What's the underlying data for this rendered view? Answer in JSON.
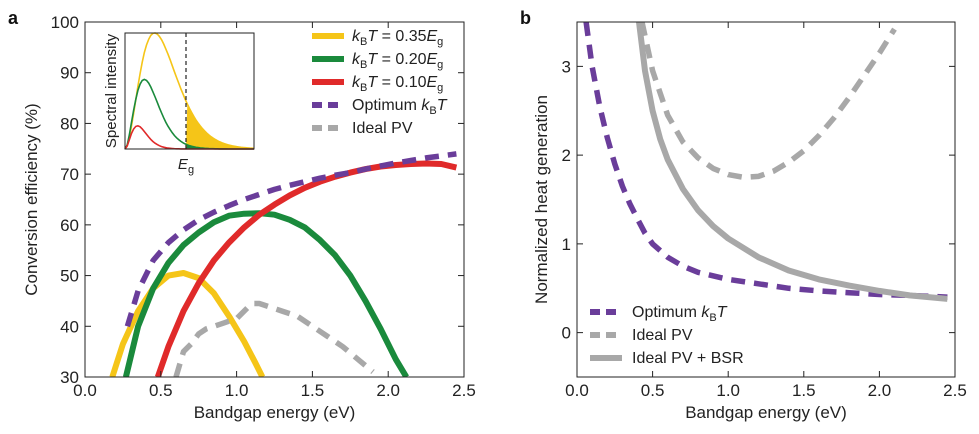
{
  "chart_data": [
    {
      "panel_label": "a",
      "type": "line",
      "xlabel": "Bandgap energy (eV)",
      "ylabel": "Conversion efficiency (%)",
      "xlim": [
        0.0,
        2.5
      ],
      "ylim": [
        30,
        100
      ],
      "xticks": [
        "0.0",
        "0.5",
        "1.0",
        "1.5",
        "2.0",
        "2.5"
      ],
      "yticks": [
        "30",
        "40",
        "50",
        "60",
        "70",
        "80",
        "90",
        "100"
      ],
      "grid": false,
      "legend_position": "top-right",
      "series": [
        {
          "name": "kBT = 0.35Eg",
          "legend": {
            "pre": "k",
            "sub1": "B",
            "mid": "T = 0.35",
            "var": "E",
            "sub2": "g"
          },
          "color": "#f5c518",
          "style": "solid",
          "x": [
            0.18,
            0.25,
            0.35,
            0.45,
            0.55,
            0.65,
            0.75,
            0.85,
            0.95,
            1.05,
            1.12,
            1.17
          ],
          "y": [
            30,
            36.5,
            43,
            47.5,
            50,
            50.5,
            49.5,
            46.5,
            42,
            37,
            33,
            30
          ]
        },
        {
          "name": "kBT = 0.20Eg",
          "legend": {
            "pre": "k",
            "sub1": "B",
            "mid": "T = 0.20",
            "var": "E",
            "sub2": "g"
          },
          "color": "#1a8a3c",
          "style": "solid",
          "x": [
            0.27,
            0.35,
            0.45,
            0.55,
            0.65,
            0.75,
            0.85,
            0.95,
            1.05,
            1.15,
            1.25,
            1.35,
            1.45,
            1.55,
            1.65,
            1.75,
            1.85,
            1.95,
            2.05,
            2.12
          ],
          "y": [
            30,
            40,
            47.5,
            52.5,
            56,
            58.5,
            60.5,
            61.8,
            62.2,
            62.3,
            62,
            61,
            59.5,
            57,
            54,
            50,
            45,
            39.5,
            33.5,
            30
          ]
        },
        {
          "name": "kBT = 0.10Eg",
          "legend": {
            "pre": "k",
            "sub1": "B",
            "mid": "T = 0.10",
            "var": "E",
            "sub2": "g"
          },
          "color": "#e02a2a",
          "style": "solid",
          "x": [
            0.48,
            0.55,
            0.65,
            0.75,
            0.85,
            0.95,
            1.05,
            1.15,
            1.25,
            1.35,
            1.45,
            1.55,
            1.65,
            1.75,
            1.85,
            1.95,
            2.05,
            2.15,
            2.25,
            2.35,
            2.45
          ],
          "y": [
            30,
            36,
            43,
            48.5,
            53,
            56.5,
            59.5,
            62,
            64,
            65.8,
            67.3,
            68.5,
            69.5,
            70.3,
            71,
            71.5,
            71.8,
            72,
            72.1,
            72,
            71.3
          ]
        },
        {
          "name": "Optimum kBT",
          "legend": {
            "pre": "Optimum ",
            "var": "k",
            "sub1": "B",
            "mid": "",
            "var2": "T"
          },
          "color": "#6a3d9a",
          "style": "dashed",
          "x": [
            0.28,
            0.35,
            0.45,
            0.55,
            0.65,
            0.75,
            0.85,
            0.95,
            1.05,
            1.15,
            1.25,
            1.35,
            1.45,
            1.55,
            1.65,
            1.75,
            1.85,
            1.95,
            2.05,
            2.15,
            2.25,
            2.35,
            2.45
          ],
          "y": [
            40,
            47,
            53,
            56.5,
            59,
            61,
            62.5,
            63.8,
            65,
            66,
            67,
            67.8,
            68.5,
            69.2,
            69.8,
            70.3,
            71,
            71.6,
            72.2,
            72.7,
            73.2,
            73.6,
            74
          ]
        },
        {
          "name": "Ideal PV",
          "legend": {
            "pre": "Ideal PV"
          },
          "color": "#a8a8a8",
          "style": "dashed",
          "x": [
            0.6,
            0.65,
            0.7,
            0.75,
            0.8,
            0.85,
            0.9,
            0.95,
            1.0,
            1.05,
            1.1,
            1.15,
            1.2,
            1.3,
            1.4,
            1.5,
            1.6,
            1.7,
            1.8,
            1.9
          ],
          "y": [
            30,
            35,
            36.5,
            38.5,
            39.5,
            40,
            40.5,
            41,
            41.5,
            43,
            44.5,
            44.5,
            44,
            43,
            42,
            40,
            38,
            36,
            33.5,
            31
          ]
        }
      ],
      "inset": {
        "ylabel": "Spectral intensity",
        "xlabel": {
          "var": "E",
          "sub": "g"
        },
        "curves": [
          {
            "name": "0.35",
            "color": "#f5c518",
            "peak": 1.0
          },
          {
            "name": "0.20",
            "color": "#1a8a3c",
            "peak": 0.6
          },
          {
            "name": "0.10",
            "color": "#e02a2a",
            "peak": 0.2
          }
        ]
      }
    },
    {
      "panel_label": "b",
      "type": "line",
      "xlabel": "Bandgap energy (eV)",
      "ylabel": "Normalized heat generation",
      "xlim": [
        0.0,
        2.5
      ],
      "ylim": [
        -0.5,
        3.5
      ],
      "xticks": [
        "0.0",
        "0.5",
        "1.0",
        "1.5",
        "2.0",
        "2.5"
      ],
      "yticks": [
        "0",
        "1",
        "2",
        "3"
      ],
      "grid": false,
      "legend_position": "bottom-left",
      "series": [
        {
          "name": "Optimum kBT",
          "legend": {
            "pre": "Optimum ",
            "var": "k",
            "sub1": "B",
            "mid": "",
            "var2": "T"
          },
          "color": "#6a3d9a",
          "style": "dashed",
          "x": [
            0.06,
            0.1,
            0.15,
            0.2,
            0.25,
            0.3,
            0.35,
            0.4,
            0.45,
            0.5,
            0.6,
            0.7,
            0.8,
            1.0,
            1.2,
            1.4,
            1.6,
            1.8,
            2.0,
            2.2,
            2.45
          ],
          "y": [
            3.5,
            3.0,
            2.55,
            2.2,
            1.9,
            1.65,
            1.45,
            1.28,
            1.12,
            1.0,
            0.85,
            0.75,
            0.68,
            0.6,
            0.55,
            0.5,
            0.47,
            0.45,
            0.43,
            0.42,
            0.4
          ]
        },
        {
          "name": "Ideal PV",
          "legend": {
            "pre": "Ideal PV"
          },
          "color": "#a8a8a8",
          "style": "dashed",
          "x": [
            0.43,
            0.5,
            0.6,
            0.7,
            0.8,
            0.9,
            1.0,
            1.1,
            1.2,
            1.3,
            1.4,
            1.5,
            1.6,
            1.7,
            1.8,
            1.9,
            2.0,
            2.1
          ],
          "y": [
            3.5,
            2.95,
            2.45,
            2.15,
            1.97,
            1.85,
            1.78,
            1.75,
            1.76,
            1.82,
            1.92,
            2.05,
            2.22,
            2.42,
            2.65,
            2.9,
            3.15,
            3.42
          ]
        },
        {
          "name": "Ideal PV + BSR",
          "legend": {
            "pre": "Ideal PV + BSR"
          },
          "color": "#a8a8a8",
          "style": "solid",
          "x": [
            0.41,
            0.45,
            0.5,
            0.55,
            0.6,
            0.7,
            0.8,
            0.9,
            1.0,
            1.2,
            1.4,
            1.6,
            1.8,
            2.0,
            2.2,
            2.45
          ],
          "y": [
            3.5,
            2.95,
            2.5,
            2.18,
            1.95,
            1.62,
            1.38,
            1.2,
            1.06,
            0.85,
            0.7,
            0.6,
            0.53,
            0.47,
            0.42,
            0.38
          ]
        }
      ]
    }
  ]
}
